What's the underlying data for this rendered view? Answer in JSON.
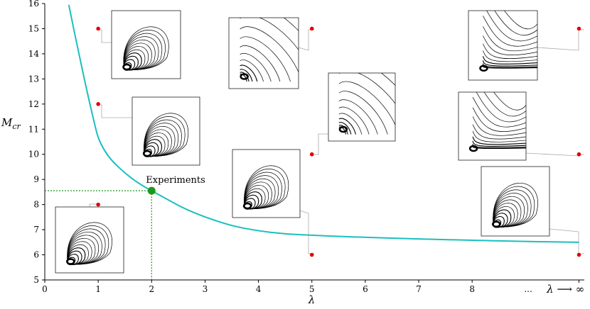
{
  "chart_data": {
    "type": "line",
    "xlabel": "λ",
    "ylabel_main": "M",
    "ylabel_sub": "cr",
    "xlim": [
      0,
      10.1
    ],
    "ylim": [
      5,
      16
    ],
    "x_ticks": [
      "0",
      "1",
      "2",
      "3",
      "4",
      "5",
      "6",
      "7",
      "8"
    ],
    "x_tick_values": [
      0,
      1,
      2,
      3,
      4,
      5,
      6,
      7,
      8
    ],
    "x_extra_labels": [
      "...",
      "λ ⟶ ∞"
    ],
    "y_ticks": [
      "5",
      "6",
      "7",
      "8",
      "9",
      "10",
      "11",
      "12",
      "13",
      "14",
      "15",
      "16"
    ],
    "y_tick_values": [
      5,
      6,
      7,
      8,
      9,
      10,
      11,
      12,
      13,
      14,
      15,
      16
    ],
    "series": [
      {
        "color": "#1abfbf",
        "x": [
          0.45,
          0.55,
          0.65,
          0.75,
          0.85,
          0.95,
          1.0,
          1.1,
          1.25,
          1.5,
          1.75,
          2.0,
          2.3,
          2.6,
          3.0,
          3.5,
          4.0,
          4.5,
          5.0,
          5.5,
          6.0,
          7.0,
          8.0,
          9.0,
          10.0
        ],
        "y": [
          15.95,
          14.9,
          13.9,
          12.9,
          11.95,
          11.05,
          10.65,
          10.2,
          9.75,
          9.25,
          8.85,
          8.55,
          8.2,
          7.85,
          7.5,
          7.15,
          6.95,
          6.83,
          6.78,
          6.73,
          6.7,
          6.63,
          6.58,
          6.53,
          6.5
        ]
      }
    ],
    "experiment_point": {
      "x": 2,
      "y": 8.55,
      "label": "Experiments",
      "color": "#1b9a1b"
    },
    "sample_points": [
      {
        "x": 1,
        "y": 15
      },
      {
        "x": 1,
        "y": 12
      },
      {
        "x": 1,
        "y": 8
      },
      {
        "x": 5,
        "y": 15
      },
      {
        "x": 5,
        "y": 10
      },
      {
        "x": 5,
        "y": 6
      },
      {
        "x": 10,
        "y": 15
      },
      {
        "x": 10,
        "y": 10
      },
      {
        "x": 10,
        "y": 6
      }
    ],
    "sample_point_color": "#e00000",
    "grid": false
  }
}
